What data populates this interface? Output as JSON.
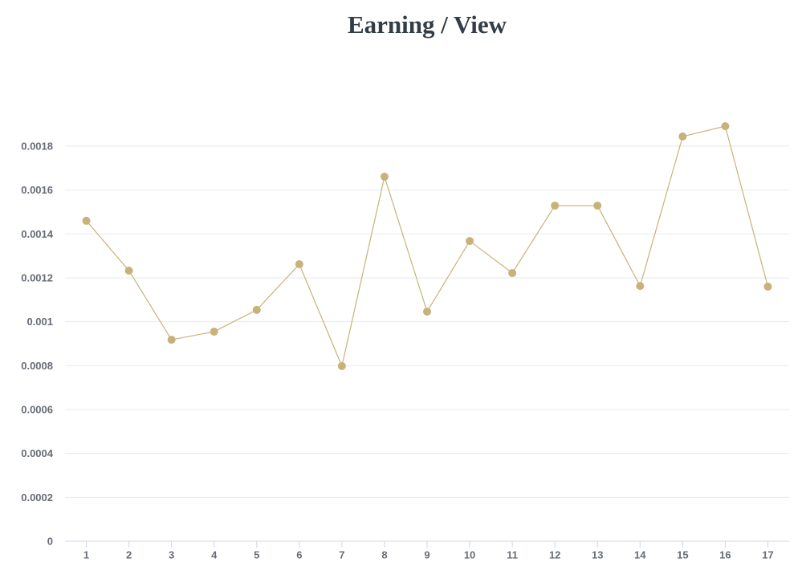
{
  "chart_data": {
    "type": "line",
    "title": "Earning / View",
    "categories": [
      "1",
      "2",
      "3",
      "4",
      "5",
      "6",
      "7",
      "8",
      "9",
      "10",
      "11",
      "12",
      "13",
      "14",
      "15",
      "16",
      "17"
    ],
    "series": [
      {
        "name": "Earning / View",
        "color": "#c9b27a",
        "values": [
          0.00146,
          0.001233,
          0.000918,
          0.000955,
          0.001054,
          0.001262,
          0.000798,
          0.001661,
          0.001046,
          0.001368,
          0.001222,
          0.001529,
          0.001529,
          0.001163,
          0.001844,
          0.001891,
          0.00116
        ]
      }
    ],
    "ylim": [
      0,
      0.002
    ],
    "yticks": [
      0,
      0.0002,
      0.0004,
      0.0006,
      0.0008,
      0.001,
      0.0012,
      0.0014,
      0.0016,
      0.0018
    ],
    "grid": true
  }
}
